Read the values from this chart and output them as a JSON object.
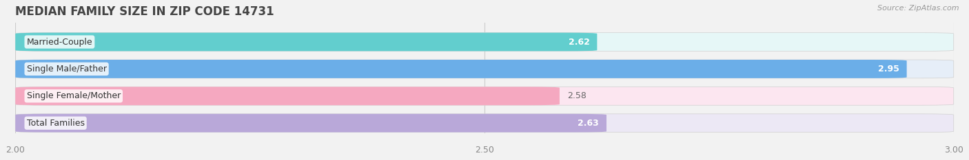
{
  "title": "MEDIAN FAMILY SIZE IN ZIP CODE 14731",
  "source": "Source: ZipAtlas.com",
  "categories": [
    "Married-Couple",
    "Single Male/Father",
    "Single Female/Mother",
    "Total Families"
  ],
  "values": [
    2.62,
    2.95,
    2.58,
    2.63
  ],
  "bar_colors": [
    "#62cece",
    "#6baee8",
    "#f5a8c0",
    "#b9a8d9"
  ],
  "bar_bg_colors": [
    "#e6f7f7",
    "#e6eef8",
    "#fce6f0",
    "#ece8f5"
  ],
  "value_in_bar": [
    true,
    true,
    false,
    true
  ],
  "xlim": [
    2.0,
    3.0
  ],
  "xticks": [
    2.0,
    2.5,
    3.0
  ],
  "xtick_labels": [
    "2.00",
    "2.50",
    "3.00"
  ],
  "background_color": "#f2f2f2",
  "title_fontsize": 12,
  "label_fontsize": 9,
  "value_fontsize": 9,
  "bar_height": 0.68,
  "bar_gap": 0.32
}
